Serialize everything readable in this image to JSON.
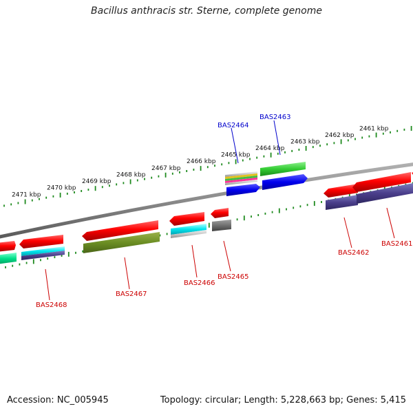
{
  "title": "Bacillus anthracis str. Sterne, complete genome",
  "footer": {
    "accession": "Accession: NC_005945",
    "summary": "Topology: circular; Length: 5,228,663 bp; Genes: 5,415"
  },
  "ruler": {
    "labels": [
      "2471 kbp",
      "2470 kbp",
      "2469 kbp",
      "2468 kbp",
      "2467 kbp",
      "2466 kbp",
      "2465 kbp",
      "2464 kbp",
      "2463 kbp",
      "2462 kbp",
      "2461 kbp"
    ]
  },
  "colors": {
    "backbone": "#8a8a8a",
    "tick": "#1e8a1e",
    "label_forward": "#0000cc",
    "label_reverse": "#cc0000"
  },
  "genes": [
    {
      "id": "BAS2464",
      "strand": "forward",
      "color": "#0000cc"
    },
    {
      "id": "BAS2463",
      "strand": "forward",
      "color": "#0000cc"
    },
    {
      "id": "BAS2468",
      "strand": "reverse",
      "color": "#cc0000"
    },
    {
      "id": "BAS2467",
      "strand": "reverse",
      "color": "#cc0000"
    },
    {
      "id": "BAS2466",
      "strand": "reverse",
      "color": "#cc0000"
    },
    {
      "id": "BAS2465",
      "strand": "reverse",
      "color": "#cc0000"
    },
    {
      "id": "BAS2462",
      "strand": "reverse",
      "color": "#cc0000"
    },
    {
      "id": "BAS2461",
      "strand": "reverse",
      "color": "#cc0000"
    }
  ]
}
